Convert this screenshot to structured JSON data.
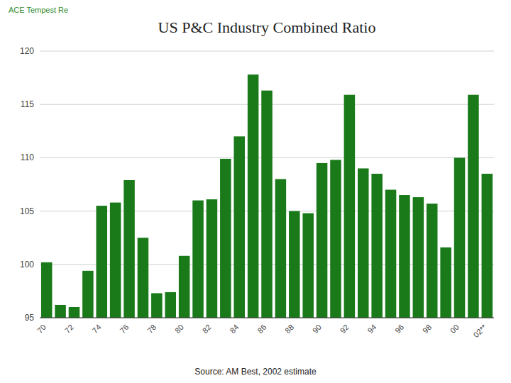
{
  "chart_data": {
    "type": "bar",
    "title": "US P&C Industry Combined Ratio",
    "categories": [
      "70",
      null,
      "72",
      null,
      "74",
      null,
      "76",
      null,
      "78",
      null,
      "80",
      null,
      "82",
      null,
      "84",
      null,
      "86",
      null,
      "88",
      null,
      "90",
      null,
      "92",
      null,
      "94",
      null,
      "96",
      null,
      "98",
      null,
      "00",
      null,
      "02**"
    ],
    "values": [
      100.2,
      96.2,
      96.0,
      99.4,
      105.5,
      105.8,
      107.9,
      102.5,
      97.3,
      97.4,
      100.8,
      106.0,
      106.1,
      109.9,
      112.0,
      117.8,
      116.3,
      108.0,
      105.0,
      104.8,
      109.5,
      109.8,
      115.9,
      109.0,
      108.5,
      107.0,
      106.5,
      106.3,
      105.7,
      101.6,
      110.0,
      115.9,
      108.5
    ],
    "color": "#1a7a1a",
    "ylim": [
      95,
      120
    ],
    "yticks": [
      95,
      100,
      105,
      110,
      115,
      120
    ],
    "grid": true,
    "annotations": [
      {
        "text": "ACE Tempest Re",
        "color": "#2e8b2e"
      },
      {
        "text": "Source: AM Best, 2002 estimate"
      }
    ]
  }
}
